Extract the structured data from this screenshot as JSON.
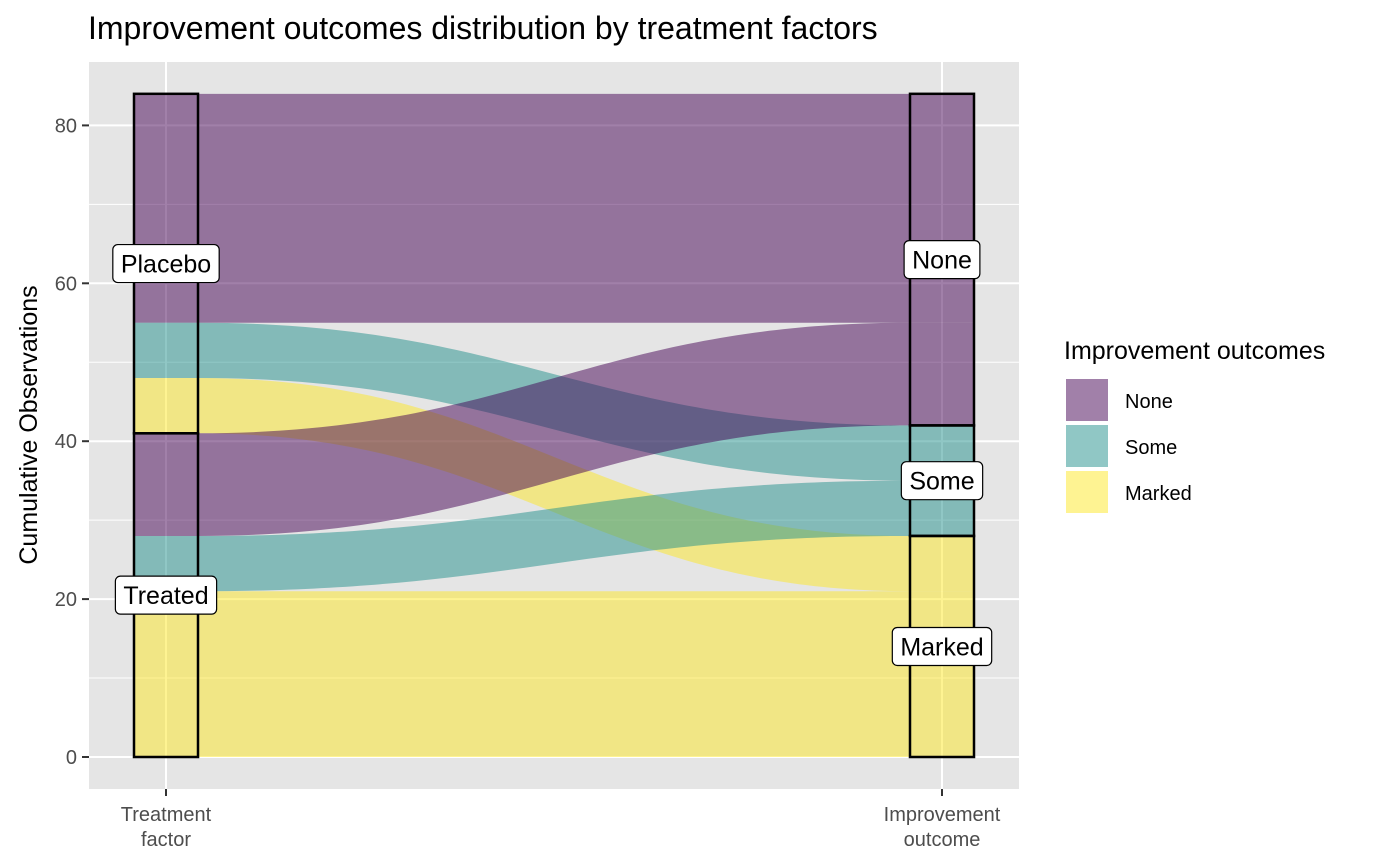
{
  "chart_data": {
    "type": "alluvial",
    "title": "Improvement outcomes distribution by treatment factors",
    "ylabel": "Cumulative Observations",
    "xlabel": "",
    "ylim": [
      0,
      84
    ],
    "yticks": [
      0,
      20,
      40,
      60,
      80
    ],
    "grid": true,
    "axes": [
      {
        "key": "treatment",
        "label_lines": [
          "Treatment",
          "factor"
        ]
      },
      {
        "key": "improvement",
        "label_lines": [
          "Improvement",
          "outcome"
        ]
      }
    ],
    "axis1_strata": [
      {
        "name": "Placebo",
        "value": 43
      },
      {
        "name": "Treated",
        "value": 41
      }
    ],
    "axis2_strata": [
      {
        "name": "None",
        "value": 42
      },
      {
        "name": "Some",
        "value": 14
      },
      {
        "name": "Marked",
        "value": 28
      }
    ],
    "flows": [
      {
        "from": "Placebo",
        "to": "None",
        "value": 29
      },
      {
        "from": "Placebo",
        "to": "Some",
        "value": 7
      },
      {
        "from": "Placebo",
        "to": "Marked",
        "value": 7
      },
      {
        "from": "Treated",
        "to": "None",
        "value": 13
      },
      {
        "from": "Treated",
        "to": "Some",
        "value": 7
      },
      {
        "from": "Treated",
        "to": "Marked",
        "value": 21
      }
    ],
    "legend": {
      "title": "Improvement outcomes",
      "placement": "right",
      "entries": [
        {
          "name": "None",
          "color": "#440154"
        },
        {
          "name": "Some",
          "color": "#21908C"
        },
        {
          "name": "Marked",
          "color": "#FDE725"
        }
      ]
    },
    "colors": {
      "panel_background": "#E5E5E5",
      "grid": "#FFFFFF",
      "stratum_border": "#000000",
      "flow_opacity": 0.5
    }
  }
}
